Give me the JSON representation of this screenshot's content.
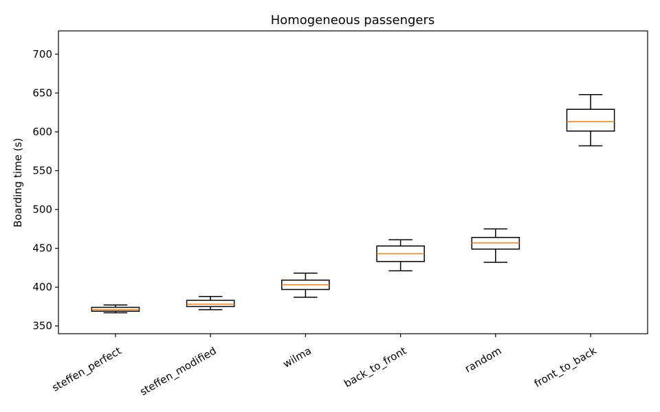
{
  "chart_data": {
    "type": "box",
    "title": "Homogeneous passengers",
    "xlabel": "",
    "ylabel": "Boarding time (s)",
    "ylim": [
      340,
      730
    ],
    "yticks": [
      350,
      400,
      450,
      500,
      550,
      600,
      650,
      700
    ],
    "categories": [
      "steffen_perfect",
      "steffen_modified",
      "wilma",
      "back_to_front",
      "random",
      "front_to_back"
    ],
    "boxes": [
      {
        "whislo": 367,
        "q1": 369,
        "med": 371,
        "q3": 374,
        "whishi": 377
      },
      {
        "whislo": 371,
        "q1": 375,
        "med": 378,
        "q3": 383,
        "whishi": 388
      },
      {
        "whislo": 387,
        "q1": 397,
        "med": 403,
        "q3": 409,
        "whishi": 418
      },
      {
        "whislo": 421,
        "q1": 433,
        "med": 443,
        "q3": 453,
        "whishi": 461
      },
      {
        "whislo": 432,
        "q1": 449,
        "med": 457,
        "q3": 464,
        "whishi": 475
      },
      {
        "whislo": 582,
        "q1": 601,
        "med": 613,
        "q3": 629,
        "whishi": 648
      }
    ],
    "grid": false,
    "legend": "none",
    "box_color": "#000000",
    "median_color": "#ff7f0e"
  }
}
